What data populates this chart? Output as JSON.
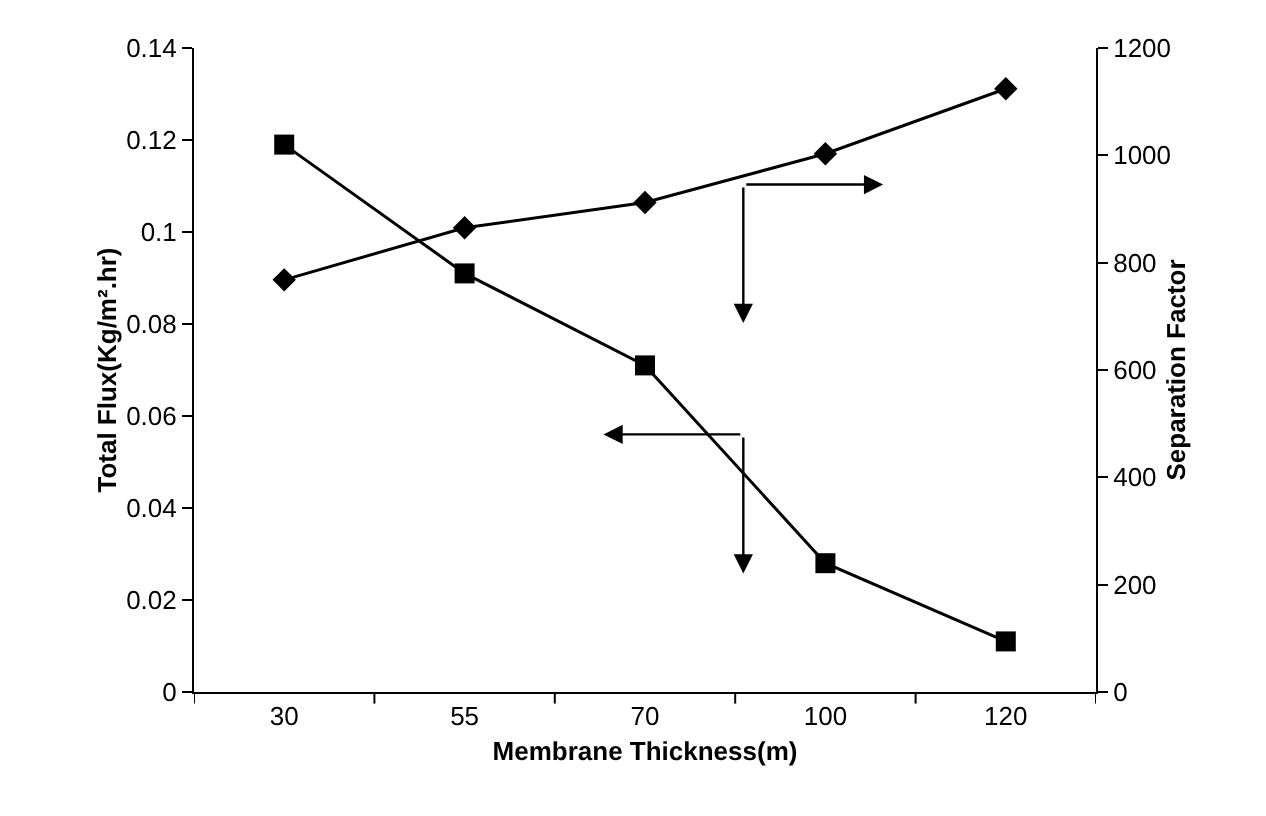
{
  "chart_data": {
    "type": "line",
    "xlabel": "Membrane Thickness(m)",
    "ylabel": "Total Flux(Kg/m².hr)",
    "y2label": "Separation Factor",
    "categories": [
      "30",
      "55",
      "70",
      "100",
      "120"
    ],
    "series": [
      {
        "color": "#000000",
        "marker": "square",
        "values": [
          0.119,
          0.091,
          0.071,
          0.028,
          0.011
        ]
      },
      {
        "color": "#000000",
        "marker": "diamond",
        "axis": "y2",
        "values": [
          768,
          865,
          912,
          1003,
          1124
        ]
      }
    ],
    "ylim": [
      0,
      0.14
    ],
    "yticks": [
      0,
      0.02,
      0.04,
      0.06,
      0.08,
      0.1,
      0.12,
      0.14
    ],
    "y2lim": [
      0,
      1200
    ],
    "y2ticks": [
      0,
      200,
      400,
      600,
      800,
      1000,
      1200
    ],
    "grid": false,
    "line_style": "solid"
  }
}
